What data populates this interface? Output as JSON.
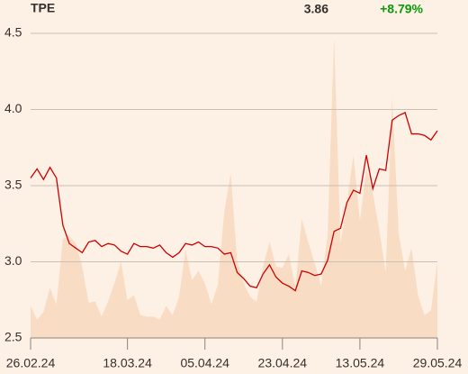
{
  "header": {
    "price": "3.86",
    "change": "+8.79%"
  },
  "chart_data": {
    "type": "line",
    "title": "TPE",
    "categories": [
      "26.02.24",
      null,
      null,
      null,
      null,
      null,
      null,
      null,
      null,
      null,
      null,
      null,
      null,
      null,
      null,
      "18.03.24",
      null,
      null,
      null,
      null,
      null,
      null,
      null,
      null,
      null,
      null,
      null,
      "05.04.24",
      null,
      null,
      null,
      null,
      null,
      null,
      null,
      null,
      null,
      null,
      null,
      "23.04.24",
      null,
      null,
      null,
      null,
      null,
      null,
      null,
      null,
      null,
      null,
      null,
      "13.05.24",
      null,
      null,
      null,
      null,
      null,
      null,
      null,
      null,
      null,
      null,
      null,
      "29.05.24"
    ],
    "series": [
      {
        "type": "area",
        "color": "#f9dcc4",
        "values": [
          2.71,
          2.62,
          2.67,
          2.83,
          2.72,
          3.15,
          3.17,
          3.12,
          2.97,
          2.73,
          2.74,
          2.64,
          2.74,
          2.86,
          3.0,
          2.75,
          2.78,
          2.65,
          2.64,
          2.64,
          2.62,
          2.71,
          2.65,
          2.77,
          3.08,
          2.88,
          2.94,
          2.86,
          2.72,
          2.85,
          3.33,
          3.58,
          3.0,
          2.86,
          2.77,
          2.74,
          2.97,
          3.13,
          2.97,
          2.96,
          3.05,
          2.83,
          3.28,
          3.13,
          2.99,
          2.84,
          3.18,
          4.47,
          3.12,
          3.39,
          3.7,
          3.27,
          3.61,
          3.45,
          3.21,
          2.93,
          4.08,
          3.19,
          2.94,
          3.09,
          2.78,
          2.65,
          2.68,
          3.0
        ]
      },
      {
        "type": "line",
        "color": "#cc0000",
        "values": [
          3.55,
          3.61,
          3.54,
          3.62,
          3.55,
          3.24,
          3.12,
          3.09,
          3.06,
          3.13,
          3.14,
          3.1,
          3.12,
          3.11,
          3.07,
          3.05,
          3.12,
          3.1,
          3.1,
          3.09,
          3.11,
          3.06,
          3.03,
          3.06,
          3.12,
          3.11,
          3.13,
          3.1,
          3.1,
          3.09,
          3.05,
          3.06,
          2.93,
          2.89,
          2.84,
          2.83,
          2.92,
          2.98,
          2.9,
          2.86,
          2.84,
          2.81,
          2.94,
          2.93,
          2.91,
          2.92,
          3.01,
          3.2,
          3.22,
          3.39,
          3.47,
          3.45,
          3.7,
          3.48,
          3.61,
          3.6,
          3.93,
          3.96,
          3.98,
          3.84,
          3.84,
          3.83,
          3.8,
          3.86
        ]
      }
    ],
    "ylim": [
      2.5,
      4.5
    ],
    "yticks": [
      2.5,
      {
        "value": 3.0,
        "label": "3.0"
      },
      3.5,
      {
        "value": 4.0,
        "label": "4.0"
      },
      4.5
    ],
    "grid": true,
    "grid_color": "#c8bfb6",
    "axis_color": "#8a8580"
  }
}
